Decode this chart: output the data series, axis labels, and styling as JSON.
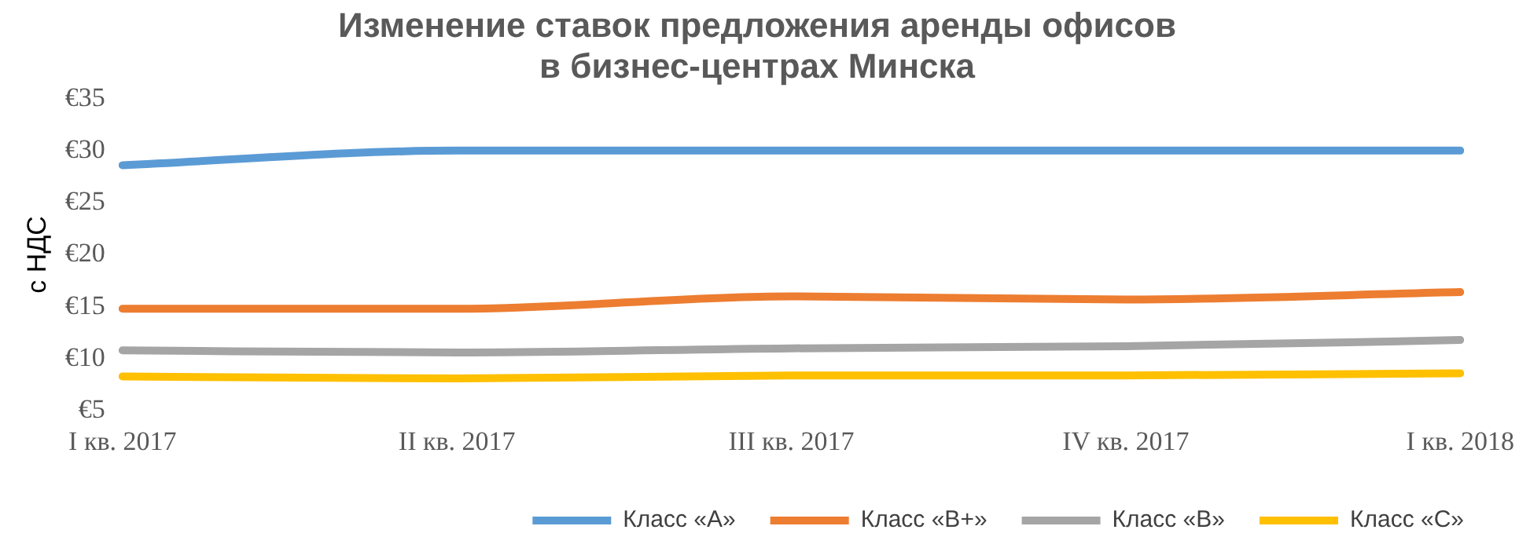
{
  "chart_data": {
    "type": "line",
    "title": [
      "Изменение ставок предложения аренды офисов",
      "в бизнес-центрах Минска"
    ],
    "ylabel": "с НДС",
    "categories": [
      "I кв. 2017",
      "II кв. 2017",
      "III кв. 2017",
      "IV кв. 2017",
      "I кв. 2018"
    ],
    "series": [
      {
        "name": "Класс «А»",
        "color": "#5b9bd5",
        "values": [
          28.6,
          30,
          30,
          30,
          30
        ]
      },
      {
        "name": "Класс «В+»",
        "color": "#ed7d31",
        "values": [
          14.8,
          14.8,
          16,
          15.7,
          16.4
        ]
      },
      {
        "name": "Класс «В»",
        "color": "#a5a5a5",
        "values": [
          10.8,
          10.6,
          11,
          11.2,
          11.8
        ]
      },
      {
        "name": "Класс «С»",
        "color": "#ffc000",
        "values": [
          8.3,
          8.1,
          8.4,
          8.4,
          8.6
        ]
      }
    ],
    "ylim": [
      5,
      35
    ],
    "yticks": [
      {
        "value": 5,
        "label": "€5"
      },
      {
        "value": 10,
        "label": "€10"
      },
      {
        "value": 15,
        "label": "€15"
      },
      {
        "value": 20,
        "label": "€20"
      },
      {
        "value": 25,
        "label": "€25"
      },
      {
        "value": 30,
        "label": "€30"
      },
      {
        "value": 35,
        "label": "€35"
      }
    ],
    "grid": false,
    "legend": "bottom right",
    "marker": "none",
    "line_style": "solid"
  }
}
